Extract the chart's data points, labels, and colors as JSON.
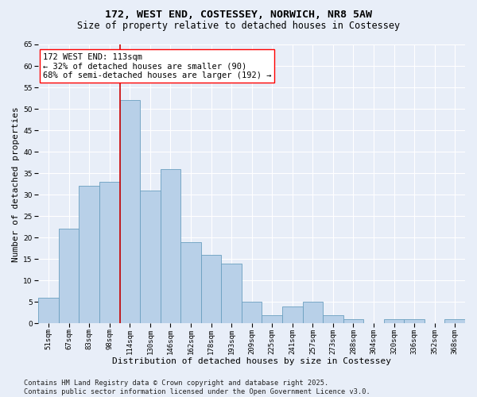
{
  "title_line1": "172, WEST END, COSTESSEY, NORWICH, NR8 5AW",
  "title_line2": "Size of property relative to detached houses in Costessey",
  "xlabel": "Distribution of detached houses by size in Costessey",
  "ylabel": "Number of detached properties",
  "categories": [
    "51sqm",
    "67sqm",
    "83sqm",
    "98sqm",
    "114sqm",
    "130sqm",
    "146sqm",
    "162sqm",
    "178sqm",
    "193sqm",
    "209sqm",
    "225sqm",
    "241sqm",
    "257sqm",
    "273sqm",
    "288sqm",
    "304sqm",
    "320sqm",
    "336sqm",
    "352sqm",
    "368sqm"
  ],
  "values": [
    6,
    22,
    32,
    33,
    52,
    31,
    36,
    19,
    16,
    14,
    5,
    2,
    4,
    5,
    2,
    1,
    0,
    1,
    1,
    0,
    1
  ],
  "bar_color": "#b8d0e8",
  "bar_edge_color": "#6a9fc0",
  "highlight_line_index": 4,
  "highlight_line_color": "#cc0000",
  "annotation_text": "172 WEST END: 113sqm\n← 32% of detached houses are smaller (90)\n68% of semi-detached houses are larger (192) →",
  "ylim": [
    0,
    65
  ],
  "yticks": [
    0,
    5,
    10,
    15,
    20,
    25,
    30,
    35,
    40,
    45,
    50,
    55,
    60,
    65
  ],
  "footer_line1": "Contains HM Land Registry data © Crown copyright and database right 2025.",
  "footer_line2": "Contains public sector information licensed under the Open Government Licence v3.0.",
  "background_color": "#e8eef8",
  "plot_bg_color": "#e8eef8",
  "grid_color": "#ffffff",
  "title_fontsize": 9.5,
  "subtitle_fontsize": 8.5,
  "axis_label_fontsize": 8,
  "tick_fontsize": 6.5,
  "annotation_fontsize": 7.5,
  "footer_fontsize": 6.2
}
